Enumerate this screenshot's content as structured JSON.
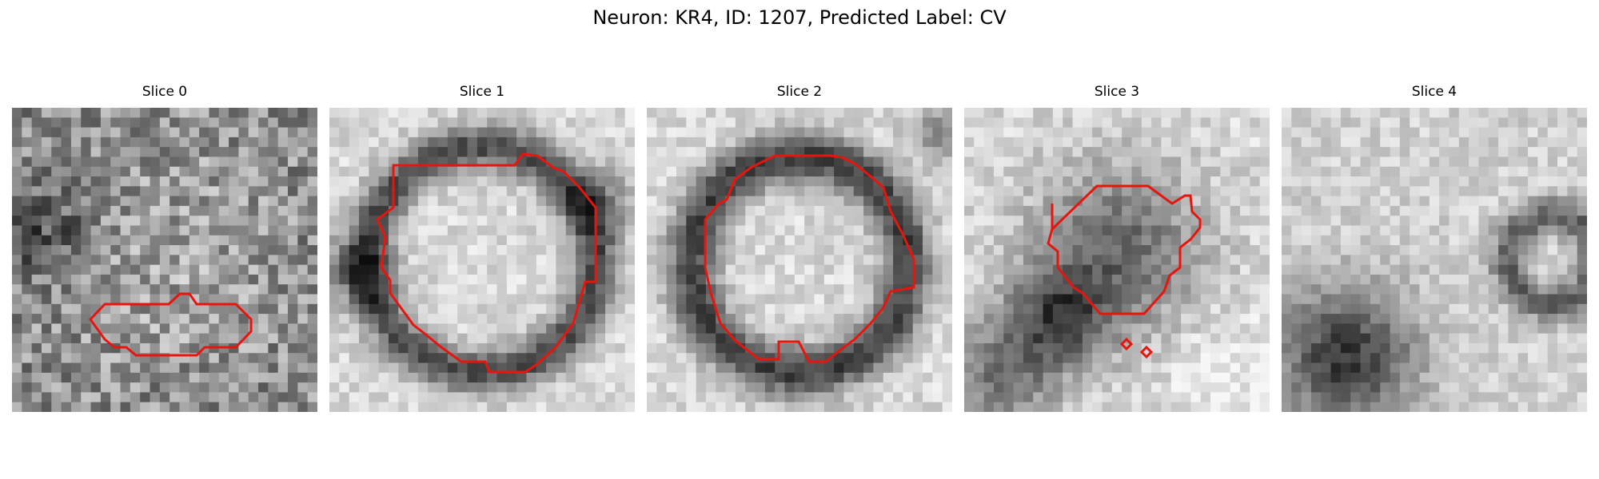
{
  "figure": {
    "title": "Neuron: KR4, ID: 1207, Predicted Label: CV",
    "contour_color": "#e8150f",
    "background": "#ffffff"
  },
  "panels": [
    {
      "title": "Slice 0",
      "texture": "noisy-gray",
      "contour": "small-horizontal-blob"
    },
    {
      "title": "Slice 1",
      "texture": "ring",
      "contour": "large-octagon"
    },
    {
      "title": "Slice 2",
      "texture": "ring",
      "contour": "large-octagon"
    },
    {
      "title": "Slice 3",
      "texture": "mixed-dark-light",
      "contour": "medium-octagon-with-two-dots"
    },
    {
      "title": "Slice 4",
      "texture": "blurry-blobs",
      "contour": "none"
    }
  ]
}
